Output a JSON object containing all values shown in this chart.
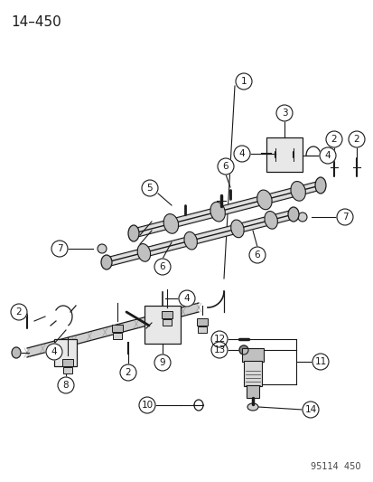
{
  "title": "14–450",
  "watermark": "95114  450",
  "bg_color": "#ffffff",
  "fg_color": "#1a1a1a",
  "gray_light": "#cccccc",
  "gray_mid": "#999999",
  "gray_dark": "#555555",
  "title_fontsize": 11,
  "label_fontsize": 7.5,
  "circle_r": 0.022
}
